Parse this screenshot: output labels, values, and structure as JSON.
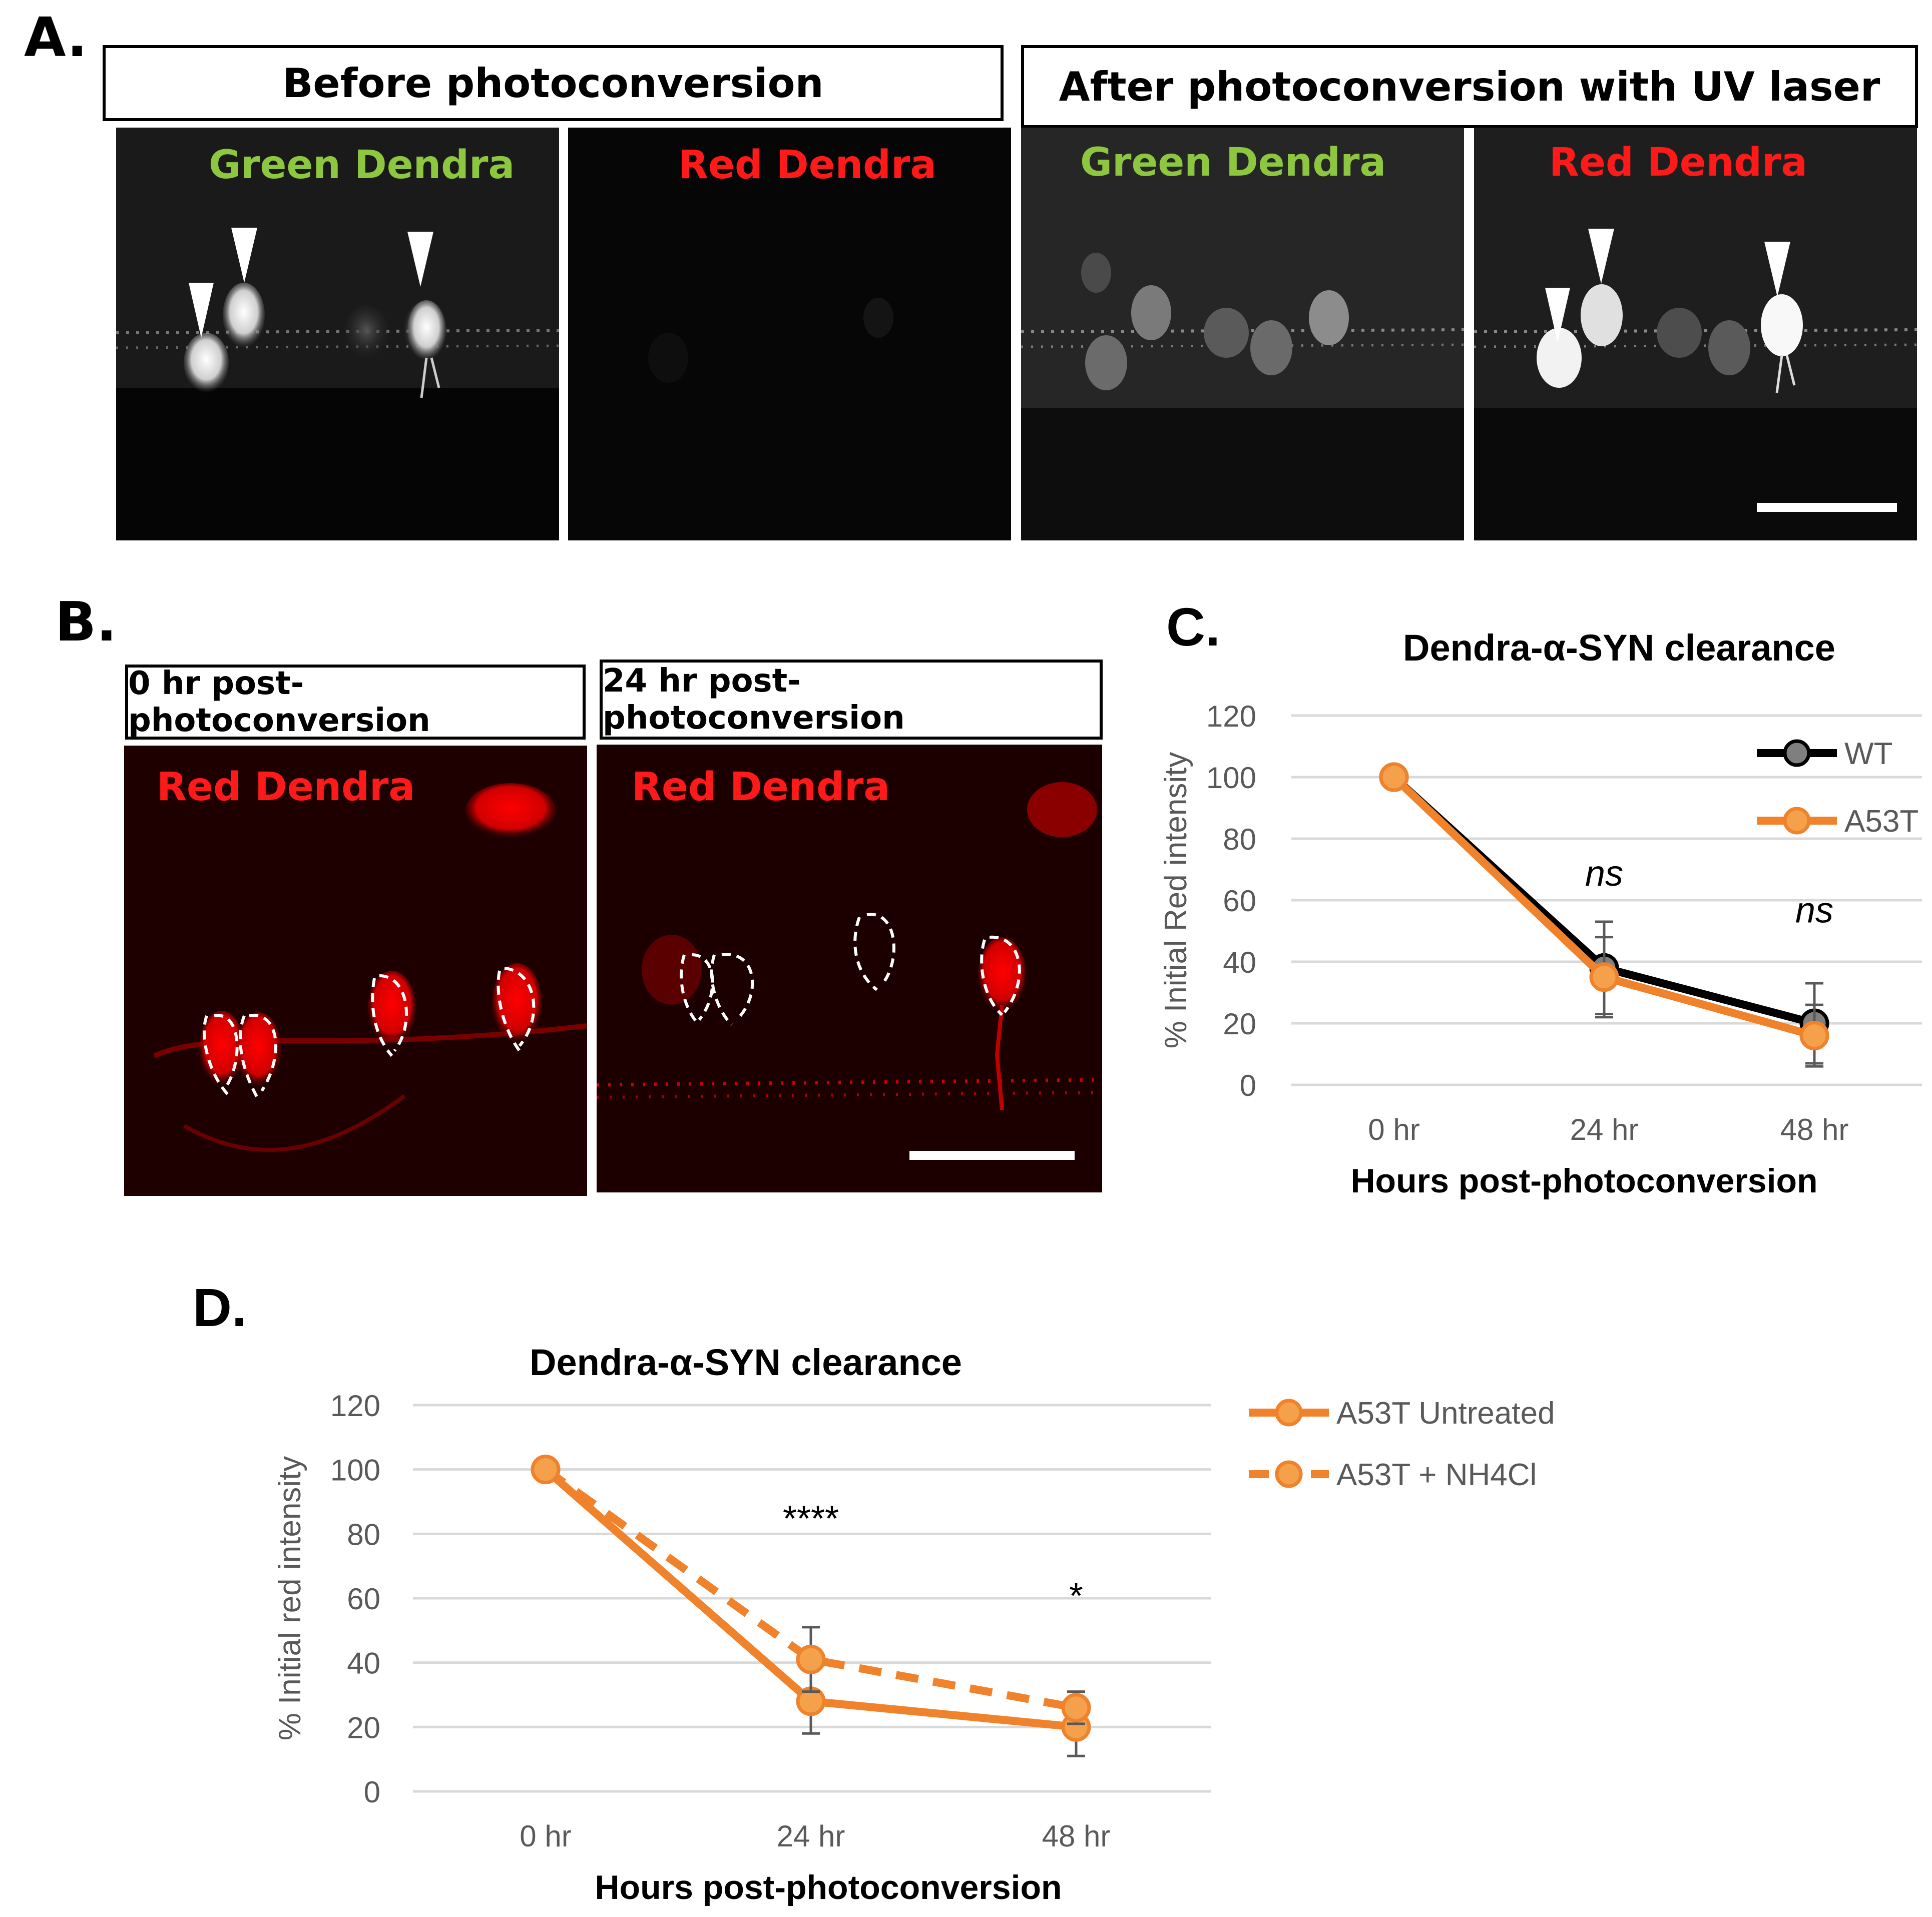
{
  "panel_a": {
    "letter": "A.",
    "header_before": "Before photoconversion",
    "header_after": "After photoconversion with UV laser",
    "images": [
      {
        "label": "Green Dendra",
        "label_color": "#8dc63f",
        "brightness": "bright"
      },
      {
        "label": "Red Dendra",
        "label_color": "#ff1a1a",
        "brightness": "dark"
      },
      {
        "label": "Green Dendra",
        "label_color": "#8dc63f",
        "brightness": "dim"
      },
      {
        "label": "Red Dendra",
        "label_color": "#ff1a1a",
        "brightness": "bright"
      }
    ]
  },
  "panel_b": {
    "letter": "B.",
    "header_0hr": "0 hr post-photoconversion",
    "header_24hr": "24 hr post-photoconversion",
    "image_label": "Red Dendra",
    "label_color": "#ff1a1a"
  },
  "chart_data": [
    {
      "panel": "C.",
      "type": "line",
      "title": "Dendra-α-SYN clearance",
      "xlabel": "Hours post-photoconversion",
      "ylabel": "% Initial Red intensity",
      "categories": [
        "0 hr",
        "24 hr",
        "48 hr"
      ],
      "ylim": [
        0,
        120
      ],
      "yticks": [
        "0",
        "20",
        "40",
        "60",
        "80",
        "100",
        "120"
      ],
      "grid": true,
      "legend_position": "top-right",
      "series": [
        {
          "name": "WT",
          "values": [
            100,
            38,
            20
          ],
          "error": [
            0,
            15,
            13
          ],
          "color": "#000000",
          "dashed": false
        },
        {
          "name": "A53T",
          "values": [
            100,
            35,
            16
          ],
          "error": [
            0,
            13,
            10
          ],
          "color": "#f0822b",
          "dashed": false
        }
      ],
      "annotations": [
        {
          "text": "ns",
          "category": "24 hr",
          "y": 68
        },
        {
          "text": "ns",
          "category": "48 hr",
          "y": 56
        }
      ]
    },
    {
      "panel": "D.",
      "type": "line",
      "title": "Dendra-α-SYN clearance",
      "xlabel": "Hours post-photoconversion",
      "ylabel": "% Initial red intensity",
      "categories": [
        "0 hr",
        "24 hr",
        "48 hr"
      ],
      "ylim": [
        0,
        120
      ],
      "yticks": [
        "0",
        "20",
        "40",
        "60",
        "80",
        "100",
        "120"
      ],
      "grid": true,
      "legend_position": "right",
      "series": [
        {
          "name": "A53T Untreated",
          "values": [
            100,
            28,
            20
          ],
          "error": [
            0,
            10,
            9
          ],
          "color": "#f0822b",
          "dashed": false
        },
        {
          "name": "A53T + NH4Cl",
          "values": [
            100,
            41,
            26
          ],
          "error": [
            0,
            10,
            5
          ],
          "color": "#f0822b",
          "dashed": true
        }
      ],
      "annotations": [
        {
          "text": "****",
          "category": "24 hr",
          "y": 84
        },
        {
          "text": "*",
          "category": "48 hr",
          "y": 60
        }
      ]
    }
  ]
}
